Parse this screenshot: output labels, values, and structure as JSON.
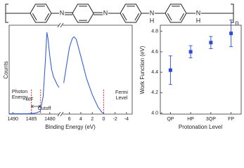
{
  "structure": {
    "atoms": [
      "N",
      "N",
      "N",
      "H",
      "N",
      "H"
    ],
    "subscript": "n"
  },
  "chart_data": [
    {
      "type": "line",
      "ylabel": "Counts",
      "xlabel": "Binding Energy (eV)",
      "color": "#3a5fd9",
      "x": [
        1491,
        1486,
        1484,
        1482.6,
        1481.8,
        1481.2,
        1480.8,
        1480.5,
        1480,
        1479.5,
        1479,
        1478,
        1477.5
      ],
      "values": [
        0.5,
        0.5,
        1,
        3,
        20,
        60,
        92,
        85,
        65,
        50,
        42,
        33,
        30
      ],
      "xlim": [
        1491,
        1477.5
      ],
      "xticks": [
        1490,
        1485,
        1480
      ],
      "ylim": [
        0,
        100
      ],
      "vlines": [
        1485,
        1482.5
      ],
      "vline_color": "#e8302a",
      "annotations": [
        "Photon Energy",
        "WF",
        "Cutoff"
      ]
    },
    {
      "type": "line",
      "color": "#3a5fd9",
      "x": [
        7,
        6.5,
        6,
        5.5,
        5.2,
        4.8,
        4,
        3,
        2,
        1,
        0.3,
        0
      ],
      "values": [
        35,
        55,
        75,
        85,
        87,
        84,
        65,
        40,
        22,
        8,
        2,
        1
      ],
      "xlim": [
        7.2,
        -5
      ],
      "xticks": [
        6,
        4,
        2,
        0,
        -2,
        -4
      ],
      "ylim": [
        0,
        100
      ],
      "vlines": [
        0
      ],
      "vline_color": "#e8302a",
      "annotations": [
        "Fermi Level"
      ]
    },
    {
      "type": "scatter",
      "ylabel": "Work Function (eV)",
      "xlabel": "Protonation Level",
      "color": "#2b4ccf",
      "categories": [
        "QP",
        "HP",
        "3QP",
        "FP"
      ],
      "values": [
        4.42,
        4.6,
        4.69,
        4.78
      ],
      "errors": [
        0.14,
        0.06,
        0.06,
        0.13
      ],
      "ylim": [
        3.99,
        4.86
      ],
      "yticks": [
        {
          "value": 4,
          "label": "4.0"
        },
        4.2,
        4.4,
        4.6,
        4.8
      ]
    }
  ]
}
